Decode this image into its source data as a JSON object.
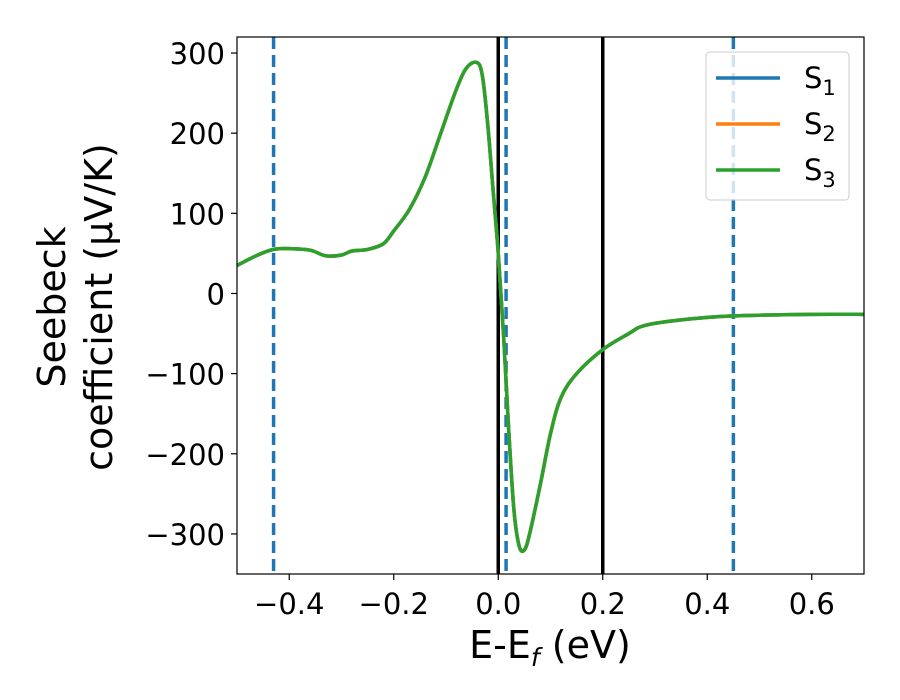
{
  "chart_data": {
    "type": "line",
    "xlabel": "E-E",
    "xlabel_sub": "f",
    "xlabel_unit": " (eV)",
    "ylabel_line1": "Seebeck",
    "ylabel_line2": "coefficient  (μV/K)",
    "xlim": [
      -0.5,
      0.7
    ],
    "ylim": [
      -350,
      320
    ],
    "xticks": [
      -0.4,
      -0.2,
      0.0,
      0.2,
      0.4,
      0.6
    ],
    "xtick_labels": [
      "−0.4",
      "−0.2",
      "0.0",
      "0.2",
      "0.4",
      "0.6"
    ],
    "yticks": [
      300,
      200,
      100,
      0,
      -100,
      -200,
      -300
    ],
    "ytick_labels": [
      "300",
      "200",
      "100",
      "0",
      "−100",
      "−200",
      "−300"
    ],
    "grid": false,
    "legend_position": "top-right",
    "series": [
      {
        "name": "S",
        "sub": "1",
        "color": "#1f77b4",
        "x": [
          -0.5,
          -0.46,
          -0.43,
          -0.4,
          -0.36,
          -0.33,
          -0.3,
          -0.28,
          -0.25,
          -0.22,
          -0.2,
          -0.17,
          -0.14,
          -0.11,
          -0.08,
          -0.06,
          -0.04,
          -0.03,
          -0.02,
          -0.01,
          0.0,
          0.01,
          0.02,
          0.03,
          0.04,
          0.05,
          0.06,
          0.08,
          0.1,
          0.12,
          0.15,
          0.2,
          0.25,
          0.28,
          0.35,
          0.45,
          0.6,
          0.7
        ],
        "y": [
          35,
          48,
          55,
          56,
          54,
          47,
          48,
          53,
          55,
          62,
          78,
          105,
          145,
          200,
          255,
          282,
          288,
          270,
          210,
          130,
          50,
          -50,
          -170,
          -270,
          -315,
          -320,
          -300,
          -240,
          -175,
          -130,
          -100,
          -70,
          -50,
          -40,
          -33,
          -28,
          -26,
          -26
        ]
      },
      {
        "name": "S",
        "sub": "2",
        "color": "#ff7f0e",
        "x": [
          -0.5,
          -0.46,
          -0.43,
          -0.4,
          -0.36,
          -0.33,
          -0.3,
          -0.28,
          -0.25,
          -0.22,
          -0.2,
          -0.17,
          -0.14,
          -0.11,
          -0.08,
          -0.06,
          -0.04,
          -0.03,
          -0.02,
          -0.01,
          0.0,
          0.01,
          0.02,
          0.03,
          0.04,
          0.05,
          0.06,
          0.08,
          0.1,
          0.12,
          0.15,
          0.2,
          0.25,
          0.28,
          0.35,
          0.45,
          0.6,
          0.7
        ],
        "y": [
          35,
          48,
          55,
          56,
          54,
          47,
          48,
          53,
          55,
          62,
          78,
          105,
          145,
          200,
          255,
          282,
          288,
          270,
          210,
          130,
          50,
          -50,
          -170,
          -270,
          -315,
          -320,
          -300,
          -240,
          -175,
          -130,
          -100,
          -70,
          -50,
          -40,
          -33,
          -28,
          -26,
          -26
        ]
      },
      {
        "name": "S",
        "sub": "3",
        "color": "#2ca02c",
        "x": [
          -0.5,
          -0.46,
          -0.43,
          -0.4,
          -0.36,
          -0.33,
          -0.3,
          -0.28,
          -0.25,
          -0.22,
          -0.2,
          -0.17,
          -0.14,
          -0.11,
          -0.08,
          -0.06,
          -0.04,
          -0.03,
          -0.02,
          -0.01,
          0.0,
          0.01,
          0.02,
          0.03,
          0.04,
          0.05,
          0.06,
          0.08,
          0.1,
          0.12,
          0.15,
          0.2,
          0.25,
          0.28,
          0.35,
          0.45,
          0.6,
          0.7
        ],
        "y": [
          35,
          48,
          55,
          56,
          54,
          47,
          48,
          53,
          55,
          62,
          78,
          105,
          145,
          200,
          255,
          282,
          288,
          270,
          210,
          130,
          50,
          -50,
          -170,
          -270,
          -315,
          -320,
          -300,
          -240,
          -175,
          -130,
          -100,
          -70,
          -50,
          -40,
          -33,
          -28,
          -26,
          -26
        ]
      }
    ],
    "vlines": [
      {
        "x": -0.43,
        "color": "#1f77b4",
        "style": "dashed"
      },
      {
        "x": 0.015,
        "color": "#1f77b4",
        "style": "dashed"
      },
      {
        "x": 0.45,
        "color": "#1f77b4",
        "style": "dashed"
      },
      {
        "x": 0.0,
        "color": "#000000",
        "style": "solid"
      },
      {
        "x": 0.2,
        "color": "#000000",
        "style": "solid"
      }
    ]
  }
}
